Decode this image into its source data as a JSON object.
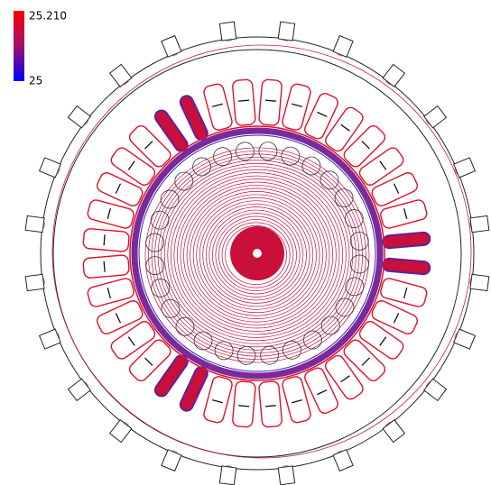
{
  "colorbar": {
    "max_label": "25.210",
    "min_label": "25"
  }
}
